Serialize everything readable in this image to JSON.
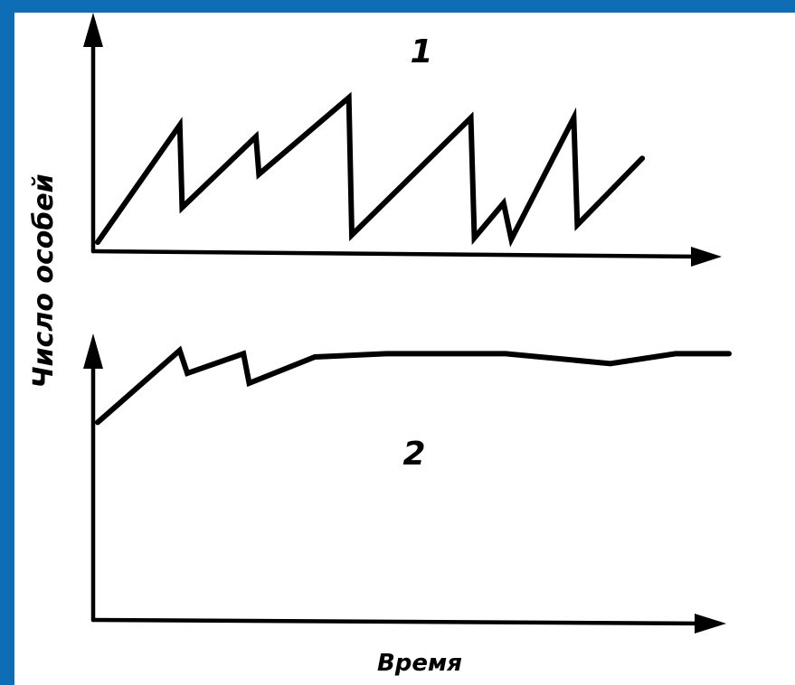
{
  "slide": {
    "background_color": "#0f6db6",
    "panel_color": "#ffffff"
  },
  "chart_data": [
    {
      "type": "line",
      "panel_label": "1",
      "ylabel": "Число особей",
      "xlabel": "",
      "grid": false,
      "x": [
        0,
        13.8,
        14.2,
        26.6,
        27.1,
        42.2,
        42.7,
        62.7,
        63.3,
        68.2,
        69.5,
        80.0,
        80.6,
        91.5
      ],
      "y": [
        0,
        81,
        24,
        73,
        47,
        100,
        5,
        86,
        3,
        27,
        2,
        86,
        12,
        58
      ],
      "xlim": [
        0,
        100
      ],
      "ylim": [
        0,
        100
      ]
    },
    {
      "type": "line",
      "panel_label": "2",
      "xlabel": "Время",
      "grid": false,
      "x": [
        0,
        13,
        14.2,
        23.1,
        24,
        34.4,
        45.7,
        64.6,
        81.2,
        91.5,
        100
      ],
      "y": [
        59,
        81,
        74,
        80,
        71,
        79,
        80,
        80,
        77,
        80,
        80
      ],
      "xlim": [
        0,
        100
      ],
      "ylim": [
        0,
        100
      ]
    }
  ]
}
